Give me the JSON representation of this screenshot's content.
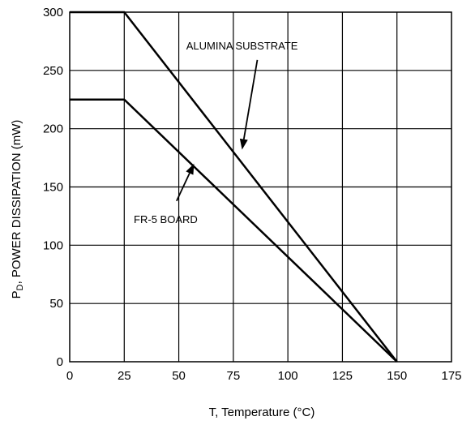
{
  "chart_data": {
    "type": "line",
    "title": "",
    "xlabel": "T, Temperature (°C)",
    "ylabel_main": "P",
    "ylabel_sub": "D",
    "ylabel_rest": ", POWER DISSIPATION (mW)",
    "xlim": [
      0,
      175
    ],
    "ylim": [
      0,
      300
    ],
    "x_ticks": [
      0,
      25,
      50,
      75,
      100,
      125,
      150,
      175
    ],
    "y_ticks": [
      0,
      50,
      100,
      150,
      200,
      250,
      300
    ],
    "grid": true,
    "legend": "none",
    "series": [
      {
        "name": "ALUMINA SUBSTRATE",
        "x": [
          0,
          25,
          150
        ],
        "y": [
          300,
          300,
          0
        ]
      },
      {
        "name": "FR-5 BOARD",
        "x": [
          0,
          25,
          150
        ],
        "y": [
          225,
          225,
          0
        ]
      }
    ],
    "annotations": [
      {
        "text": "ALUMINA SUBSTRATE",
        "series": 0,
        "label_at": [
          79,
          268
        ],
        "arrow_from": [
          86,
          259
        ],
        "arrow_to": [
          79,
          182
        ]
      },
      {
        "text": "FR-5 BOARD",
        "series": 1,
        "label_at": [
          44,
          119
        ],
        "arrow_from": [
          49,
          138
        ],
        "arrow_to": [
          57,
          170
        ]
      }
    ],
    "colors": {
      "line": "#000000",
      "grid": "#000000",
      "background": "#ffffff"
    }
  }
}
